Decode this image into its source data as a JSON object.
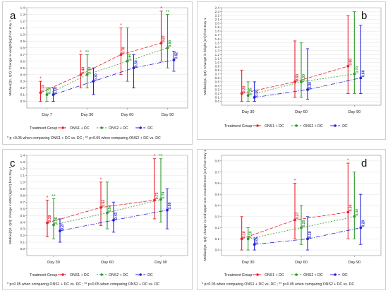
{
  "legend": {
    "title": "Treatment Group",
    "items": [
      {
        "label": "ONS1 + DC",
        "color": "#e8202a"
      },
      {
        "label": "ONS2 + DC",
        "color": "#2e9a2e"
      },
      {
        "label": "DC",
        "color": "#2323d8"
      }
    ]
  },
  "footnotes": {
    "a": "* p <0.05 when comparing ONS1 + DC vs. DC ; ** p<0.05 when comparing ONS2 + DC vs. DC",
    "c": "* p<0.05 when comparing ONS1 + DC vs. DC ; ** p<0.05 when comparing ONS2 + DC vs. DC",
    "d": "* p<0.05 when comparing ONS1 + DC vs. DC ; ** p<0.05 when comparing ONS2 + DC vs. DC"
  },
  "chart_data": [
    {
      "id": "a",
      "type": "line",
      "letter": "a",
      "ylabel": "Median(Q1, Q3): Change in weight(kg) from Day 1",
      "categories": [
        "Day 7",
        "Day 30",
        "Day 60",
        "Day 90"
      ],
      "ylim": [
        -0.1,
        1.4
      ],
      "yticks": [
        0.0,
        0.1,
        0.2,
        0.3,
        0.4,
        0.5,
        0.6,
        0.7,
        0.8,
        0.9,
        1.0,
        1.1,
        1.2,
        1.3,
        1.4
      ],
      "ytick_labels": [
        "0.0",
        "0.1",
        "0.2",
        "0.3",
        "0.4",
        "0.5",
        "0.6",
        "0.7",
        "0.8",
        "0.9",
        "1.0",
        "1.1",
        "1.2",
        "1.3",
        "1.4"
      ],
      "grid": true,
      "series": [
        {
          "name": "ONS1 + DC",
          "color": "#e8202a",
          "values": [
            0.13,
            0.4,
            0.7,
            0.87
          ],
          "low": [
            0.0,
            0.2,
            0.4,
            0.6
          ],
          "high": [
            0.3,
            0.7,
            1.1,
            1.35
          ],
          "labels": [
            "0.13",
            "0.40",
            "0.70",
            "0.87"
          ]
        },
        {
          "name": "ONS2 + DC",
          "color": "#2e9a2e",
          "values": [
            0.1,
            0.4,
            0.6,
            0.8
          ],
          "low": [
            0.0,
            0.2,
            0.3,
            0.5
          ],
          "high": [
            0.2,
            0.7,
            1.1,
            1.3
          ],
          "labels": [
            "0.10",
            "0.40",
            "0.60",
            "0.80"
          ]
        },
        {
          "name": "DC",
          "color": "#2323d8",
          "values": [
            0.1,
            0.3,
            0.5,
            0.62
          ],
          "low": [
            0.0,
            0.1,
            0.2,
            0.45
          ],
          "high": [
            0.2,
            0.5,
            0.7,
            0.75
          ],
          "labels": [
            "0.10",
            "0.30",
            "0.50",
            "0.62"
          ]
        }
      ],
      "annotations": [
        {
          "series": 0,
          "index": 0,
          "text": "*"
        },
        {
          "series": 0,
          "index": 1,
          "text": "*"
        },
        {
          "series": 1,
          "index": 1,
          "text": "**"
        },
        {
          "series": 0,
          "index": 2,
          "text": "*"
        },
        {
          "series": 0,
          "index": 3,
          "text": "*"
        },
        {
          "series": 1,
          "index": 3,
          "text": "**"
        }
      ]
    },
    {
      "id": "b",
      "type": "line",
      "letter": "b",
      "ylabel": "Median(Q1, Q3): Change in height (cm) from Day 1",
      "categories": [
        "Day 30",
        "Day 60",
        "Day 90"
      ],
      "ylim": [
        -0.1,
        2.4
      ],
      "yticks": [
        0.0,
        0.1,
        0.2,
        0.3,
        0.4,
        0.5,
        0.6,
        0.7,
        0.8,
        0.9,
        1.0,
        1.1,
        1.2,
        1.3,
        1.4,
        1.5,
        1.6,
        1.7,
        1.8,
        1.9,
        2.0,
        2.1,
        2.2,
        2.3,
        2.4
      ],
      "ytick_labels": [
        "0.0",
        "0.1",
        "0.2",
        "0.3",
        "0.4",
        "0.5",
        "0.6",
        "0.7",
        "0.8",
        "0.9",
        "1.0",
        "1.1",
        "1.2",
        "1.3",
        "1.4",
        "1.5",
        "1.6",
        "1.7",
        "1.8",
        "1.9",
        "2.0",
        "2.1",
        "2.2",
        "2.3",
        "2.4"
      ],
      "grid": true,
      "series": [
        {
          "name": "ONS1 + DC",
          "color": "#e8202a",
          "values": [
            0.2,
            0.5,
            0.9
          ],
          "low": [
            0.0,
            0.1,
            0.2
          ],
          "high": [
            0.8,
            1.55,
            2.2
          ],
          "labels": [
            "0.20",
            "0.50",
            "0.90"
          ]
        },
        {
          "name": "ONS2 + DC",
          "color": "#2e9a2e",
          "values": [
            0.15,
            0.5,
            0.7
          ],
          "low": [
            0.0,
            0.1,
            0.2
          ],
          "high": [
            0.5,
            1.5,
            2.3
          ],
          "labels": [
            "0.15",
            "0.50",
            "0.70"
          ]
        },
        {
          "name": "DC",
          "color": "#2323d8",
          "values": [
            0.1,
            0.3,
            0.6
          ],
          "low": [
            0.0,
            0.05,
            0.2
          ],
          "high": [
            0.5,
            1.35,
            1.95
          ],
          "labels": [
            "0.10",
            "0.30",
            "0.60"
          ]
        }
      ],
      "annotations": []
    },
    {
      "id": "c",
      "type": "line",
      "letter": "c",
      "ylabel": "Median(Q1, Q3): change in BMI (kg/m2) from Day 1",
      "categories": [
        "Day 30",
        "Day 60",
        "Day 90"
      ],
      "ylim": [
        -0.1,
        1.4
      ],
      "yticks": [
        0.0,
        0.1,
        0.2,
        0.3,
        0.4,
        0.5,
        0.6,
        0.7,
        0.8,
        0.9,
        1.0,
        1.1,
        1.2,
        1.3,
        1.4
      ],
      "ytick_labels": [
        "0.0",
        "0.1",
        "0.2",
        "0.3",
        "0.4",
        "0.5",
        "0.6",
        "0.7",
        "0.8",
        "0.9",
        "1.0",
        "1.1",
        "1.2",
        "1.3",
        "1.4"
      ],
      "grid": true,
      "series": [
        {
          "name": "ONS1 + DC",
          "color": "#e8202a",
          "values": [
            0.39,
            0.62,
            0.73
          ],
          "low": [
            0.18,
            0.35,
            0.45
          ],
          "high": [
            0.73,
            1.0,
            1.35
          ],
          "labels": [
            "0.39",
            "0.62",
            "0.73"
          ]
        },
        {
          "name": "ONS2 + DC",
          "color": "#2e9a2e",
          "values": [
            0.36,
            0.54,
            0.74
          ],
          "low": [
            0.15,
            0.3,
            0.4
          ],
          "high": [
            0.75,
            1.0,
            1.35
          ],
          "labels": [
            "0.36",
            "0.54",
            "0.74"
          ]
        },
        {
          "name": "DC",
          "color": "#2323d8",
          "values": [
            0.27,
            0.43,
            0.58
          ],
          "low": [
            0.1,
            0.25,
            0.3
          ],
          "high": [
            0.45,
            0.7,
            0.9
          ],
          "labels": [
            "0.27",
            "0.43",
            "0.58"
          ]
        }
      ],
      "annotations": [
        {
          "series": 0,
          "index": 0,
          "text": "*"
        },
        {
          "series": 1,
          "index": 0,
          "text": "**"
        },
        {
          "series": 0,
          "index": 1,
          "text": "*"
        },
        {
          "series": 0,
          "index": 2,
          "text": "*"
        },
        {
          "series": 1,
          "index": 2,
          "text": "**"
        }
      ]
    },
    {
      "id": "d",
      "type": "line",
      "letter": "d",
      "ylabel": "Median(Q1, Q3): change in mid-upper arm circumference (cm) from Day 1",
      "categories": [
        "Day 30",
        "Day 60",
        "Day 90"
      ],
      "ylim": [
        -0.05,
        0.85
      ],
      "yticks": [
        0.0,
        0.1,
        0.2,
        0.3,
        0.4,
        0.5,
        0.6,
        0.7,
        0.8
      ],
      "ytick_labels": [
        "0.0",
        "0.1",
        "0.2",
        "0.3",
        "0.4",
        "0.5",
        "0.6",
        "0.7",
        "0.8"
      ],
      "grid": true,
      "series": [
        {
          "name": "ONS1 + DC",
          "color": "#e8202a",
          "values": [
            0.1,
            0.27,
            0.34
          ],
          "low": [
            0.0,
            0.1,
            0.1
          ],
          "high": [
            0.3,
            0.6,
            0.78
          ],
          "labels": [
            "0.10",
            "0.27",
            "0.34"
          ]
        },
        {
          "name": "ONS2 + DC",
          "color": "#2e9a2e",
          "values": [
            0.1,
            0.2,
            0.3
          ],
          "low": [
            0.0,
            0.05,
            0.1
          ],
          "high": [
            0.2,
            0.4,
            0.7
          ],
          "labels": [
            "0.10",
            "0.20",
            "0.30"
          ]
        },
        {
          "name": "DC",
          "color": "#2323d8",
          "values": [
            0.05,
            0.1,
            0.2
          ],
          "low": [
            0.0,
            0.0,
            0.05
          ],
          "high": [
            0.1,
            0.3,
            0.5
          ],
          "labels": [
            "0.05",
            "0.10",
            "0.20"
          ]
        }
      ],
      "annotations": [
        {
          "series": 0,
          "index": 1,
          "text": "*"
        },
        {
          "series": 0,
          "index": 2,
          "text": "*"
        }
      ]
    }
  ]
}
